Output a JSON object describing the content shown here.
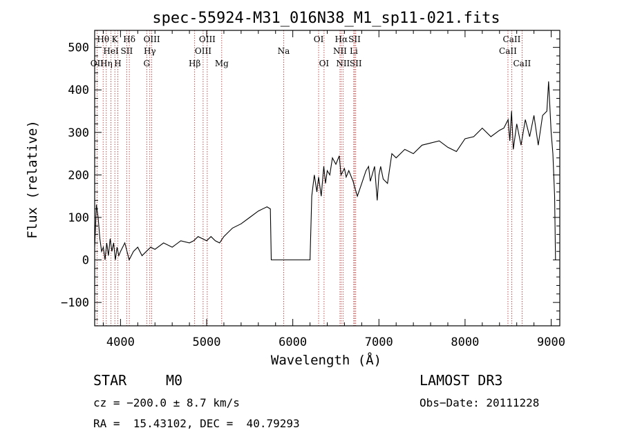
{
  "chart_data": {
    "type": "line",
    "title": "spec-55924-M31_016N38_M1_sp11-021.fits",
    "xlabel": "Wavelength (Å)",
    "ylabel": "Flux (relative)",
    "xlim": [
      3700,
      9100
    ],
    "ylim": [
      -155,
      540
    ],
    "xticks": [
      4000,
      5000,
      6000,
      7000,
      8000,
      9000
    ],
    "yticks": [
      -100,
      0,
      100,
      200,
      300,
      400,
      500
    ],
    "series": [
      {
        "name": "flux",
        "x": [
          3700,
          3720,
          3740,
          3760,
          3780,
          3800,
          3820,
          3840,
          3860,
          3880,
          3900,
          3920,
          3940,
          3960,
          3980,
          4000,
          4050,
          4100,
          4150,
          4200,
          4250,
          4300,
          4350,
          4400,
          4500,
          4600,
          4700,
          4800,
          4850,
          4900,
          4950,
          5000,
          5050,
          5100,
          5150,
          5200,
          5300,
          5400,
          5500,
          5600,
          5700,
          5740,
          5750,
          6000,
          6200,
          6220,
          6250,
          6280,
          6300,
          6330,
          6360,
          6380,
          6400,
          6430,
          6460,
          6500,
          6540,
          6560,
          6600,
          6620,
          6650,
          6700,
          6720,
          6750,
          6800,
          6850,
          6880,
          6900,
          6950,
          6980,
          7000,
          7020,
          7050,
          7100,
          7150,
          7200,
          7300,
          7400,
          7500,
          7600,
          7700,
          7800,
          7900,
          8000,
          8100,
          8200,
          8300,
          8400,
          8450,
          8500,
          8520,
          8540,
          8560,
          8600,
          8620,
          8650,
          8700,
          8750,
          8800,
          8850,
          8900,
          8950,
          8970,
          9000,
          9020,
          9040,
          9050
        ],
        "y": [
          30,
          130,
          100,
          50,
          20,
          30,
          0,
          40,
          10,
          50,
          20,
          40,
          0,
          30,
          10,
          20,
          40,
          0,
          20,
          30,
          10,
          20,
          30,
          25,
          40,
          30,
          45,
          40,
          45,
          55,
          50,
          45,
          55,
          45,
          40,
          55,
          75,
          85,
          100,
          115,
          125,
          120,
          0,
          0,
          0,
          150,
          200,
          160,
          195,
          150,
          220,
          180,
          210,
          200,
          240,
          225,
          245,
          200,
          215,
          195,
          210,
          185,
          170,
          150,
          180,
          210,
          220,
          185,
          220,
          140,
          200,
          220,
          190,
          180,
          250,
          240,
          260,
          250,
          270,
          275,
          280,
          265,
          255,
          285,
          290,
          310,
          290,
          305,
          310,
          330,
          280,
          350,
          260,
          320,
          300,
          270,
          330,
          290,
          340,
          270,
          340,
          350,
          420,
          300,
          250,
          150,
          0
        ]
      }
    ],
    "lines": [
      {
        "label": "OII",
        "wl": 3727,
        "row": 2
      },
      {
        "label": "Hθ",
        "wl": 3798,
        "row": 0
      },
      {
        "label": "Hη",
        "wl": 3835,
        "row": 2
      },
      {
        "label": "HeI",
        "wl": 3889,
        "row": 1
      },
      {
        "label": "K",
        "wl": 3934,
        "row": 0
      },
      {
        "label": "H",
        "wl": 3969,
        "row": 2
      },
      {
        "label": "SII",
        "wl": 4072,
        "row": 1
      },
      {
        "label": "Hδ",
        "wl": 4102,
        "row": 0
      },
      {
        "label": "G",
        "wl": 4304,
        "row": 2
      },
      {
        "label": "Hγ",
        "wl": 4340,
        "row": 1
      },
      {
        "label": "OIII",
        "wl": 4363,
        "row": 0
      },
      {
        "label": "Hβ",
        "wl": 4861,
        "row": 2
      },
      {
        "label": "OIII",
        "wl": 4959,
        "row": 1
      },
      {
        "label": "OIII",
        "wl": 5007,
        "row": 0
      },
      {
        "label": "Mg",
        "wl": 5175,
        "row": 2
      },
      {
        "label": "Na",
        "wl": 5894,
        "row": 1
      },
      {
        "label": "OI",
        "wl": 6300,
        "row": 0
      },
      {
        "label": "OI",
        "wl": 6363,
        "row": 2
      },
      {
        "label": "NII",
        "wl": 6548,
        "row": 1
      },
      {
        "label": "Hα",
        "wl": 6563,
        "row": 0
      },
      {
        "label": "NII",
        "wl": 6583,
        "row": 2
      },
      {
        "label": "Li",
        "wl": 6708,
        "row": 1
      },
      {
        "label": "SII",
        "wl": 6717,
        "row": 0
      },
      {
        "label": "SII",
        "wl": 6731,
        "row": 2
      },
      {
        "label": "CaII",
        "wl": 8498,
        "row": 1
      },
      {
        "label": "CaII",
        "wl": 8542,
        "row": 0
      },
      {
        "label": "CaII",
        "wl": 8662,
        "row": 2
      }
    ]
  },
  "info": {
    "class": "STAR",
    "subclass": "M0",
    "survey": "LAMOST DR3",
    "cz": "cz = −200.0 ± 8.7 km/s",
    "obsdate": "Obs−Date: 20111228",
    "radec": "RA =  15.43102, DEC =  40.79293"
  },
  "colors": {
    "line_marker": "#b22222",
    "ink": "#000000"
  }
}
